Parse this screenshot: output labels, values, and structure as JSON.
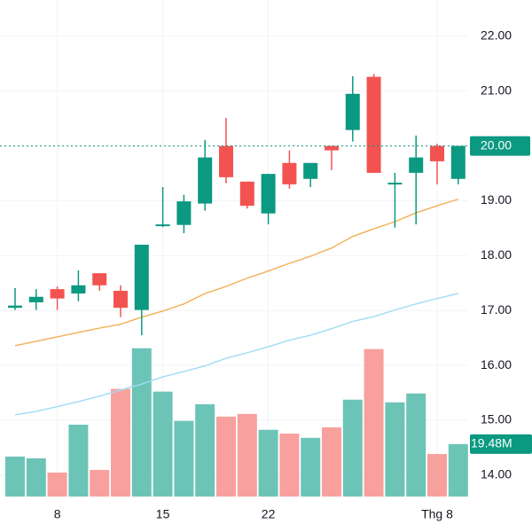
{
  "chart_data": {
    "type": "candlestick",
    "categories": [
      null,
      null,
      "8",
      null,
      null,
      null,
      null,
      "15",
      null,
      null,
      null,
      null,
      "22",
      null,
      null,
      null,
      null,
      null,
      null,
      null,
      "Thg 8",
      null
    ],
    "open": [
      17.05,
      17.15,
      17.39,
      17.31,
      17.68,
      17.36,
      17.01,
      18.54,
      18.56,
      18.95,
      20.0,
      19.35,
      18.77,
      19.69,
      19.4,
      20.0,
      20.29,
      21.26,
      19.3,
      19.51,
      20.0,
      19.4
    ],
    "high": [
      17.41,
      17.39,
      17.44,
      17.73,
      17.68,
      17.46,
      18.2,
      19.25,
      19.11,
      20.11,
      20.51,
      19.35,
      19.49,
      19.92,
      19.69,
      20.0,
      21.27,
      21.31,
      19.51,
      20.19,
      20.04,
      20.0
    ],
    "low": [
      17.01,
      17.01,
      17.01,
      17.17,
      17.36,
      16.88,
      16.55,
      18.52,
      18.41,
      18.82,
      19.32,
      18.86,
      18.57,
      19.22,
      19.25,
      19.56,
      20.08,
      19.51,
      18.51,
      18.57,
      19.3,
      19.3
    ],
    "close": [
      17.09,
      17.25,
      17.22,
      17.46,
      17.46,
      17.05,
      18.2,
      18.57,
      18.99,
      19.79,
      19.43,
      18.91,
      19.49,
      19.3,
      19.69,
      19.92,
      20.95,
      19.51,
      19.33,
      19.79,
      19.72,
      20.0
    ],
    "volume": [
      14.86,
      14.2,
      8.9,
      26.7,
      9.9,
      40.0,
      55.1,
      39.0,
      28.1,
      34.3,
      29.7,
      30.7,
      24.8,
      23.4,
      21.8,
      25.7,
      36.0,
      54.8,
      35.0,
      38.3,
      15.8,
      19.48
    ],
    "volume_label": "19.48M",
    "ma_series": [
      {
        "color": "#f2b056",
        "values": [
          16.36,
          16.44,
          16.52,
          16.6,
          16.68,
          16.75,
          16.88,
          16.99,
          17.12,
          17.31,
          17.44,
          17.59,
          17.72,
          17.86,
          17.99,
          18.14,
          18.35,
          18.49,
          18.62,
          18.78,
          18.91,
          19.03
        ]
      },
      {
        "color": "#9fdcf4",
        "values": [
          15.1,
          15.16,
          15.25,
          15.34,
          15.44,
          15.55,
          15.66,
          15.79,
          15.89,
          15.99,
          16.13,
          16.23,
          16.34,
          16.46,
          16.55,
          16.67,
          16.8,
          16.89,
          17.01,
          17.12,
          17.22,
          17.31
        ]
      }
    ],
    "last_price": {
      "value": 20,
      "label": "20.00"
    },
    "ylim": [
      13.61,
      22.66
    ],
    "yticks": [
      {
        "value": 14,
        "label": "14.00"
      },
      {
        "value": 15,
        "label": "15.00"
      },
      {
        "value": 16,
        "label": "16.00"
      },
      {
        "value": 17,
        "label": "17.00"
      },
      {
        "value": 18,
        "label": "18.00"
      },
      {
        "value": 19,
        "label": "19.00"
      },
      {
        "value": 20,
        "label": "20.00"
      },
      {
        "value": 21,
        "label": "21.00"
      },
      {
        "value": 22,
        "label": "22.00"
      }
    ],
    "volume_lim": [
      0,
      184.5
    ],
    "up_color": "#0b9981",
    "down_color": "#f35350",
    "volume_up_color": "#6cc4b7",
    "volume_down_color": "#f8a09e",
    "grid": true
  }
}
